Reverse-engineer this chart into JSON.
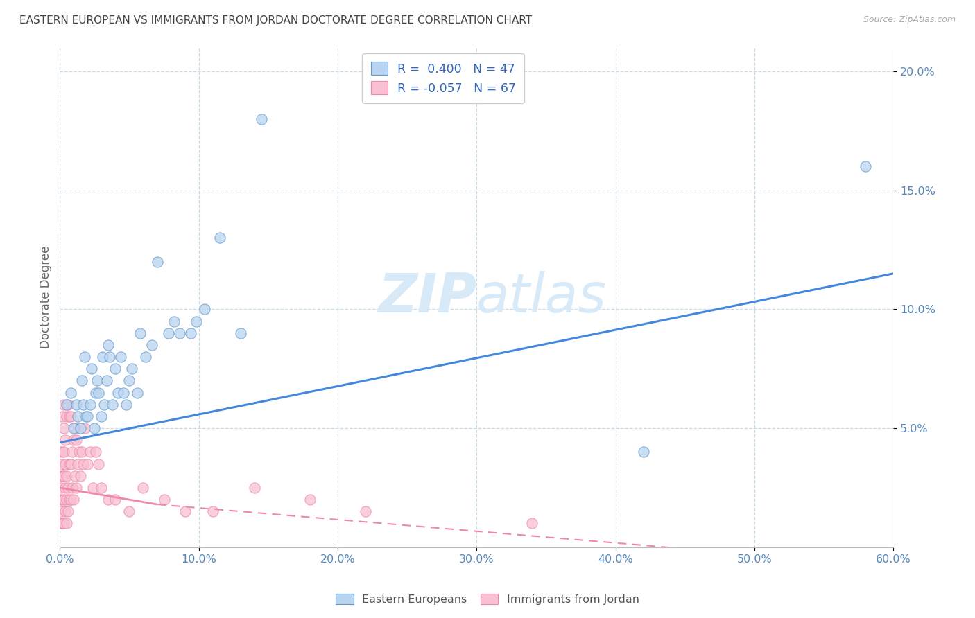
{
  "title": "EASTERN EUROPEAN VS IMMIGRANTS FROM JORDAN DOCTORATE DEGREE CORRELATION CHART",
  "source": "Source: ZipAtlas.com",
  "ylabel": "Doctorate Degree",
  "xlim": [
    0.0,
    0.6
  ],
  "ylim": [
    0.0,
    0.21
  ],
  "xtick_vals": [
    0.0,
    0.1,
    0.2,
    0.3,
    0.4,
    0.5,
    0.6
  ],
  "ytick_vals": [
    0.05,
    0.1,
    0.15,
    0.2
  ],
  "R_eastern": 0.4,
  "N_eastern": 47,
  "R_jordan": -0.057,
  "N_jordan": 67,
  "eastern_color": "#b8d4f0",
  "jordan_color": "#f8c0d0",
  "eastern_edge_color": "#6699cc",
  "jordan_edge_color": "#ee88aa",
  "trendline_eastern_color": "#4488dd",
  "trendline_jordan_color": "#ee88aa",
  "background_color": "#ffffff",
  "grid_color": "#c8dce8",
  "title_color": "#444444",
  "axis_tick_color": "#5588bb",
  "watermark_color": "#d8eaf8",
  "eastern_x": [
    0.005,
    0.008,
    0.01,
    0.012,
    0.013,
    0.015,
    0.016,
    0.017,
    0.018,
    0.019,
    0.02,
    0.022,
    0.023,
    0.025,
    0.026,
    0.027,
    0.028,
    0.03,
    0.031,
    0.032,
    0.034,
    0.035,
    0.036,
    0.038,
    0.04,
    0.042,
    0.044,
    0.046,
    0.048,
    0.05,
    0.052,
    0.056,
    0.058,
    0.062,
    0.066,
    0.07,
    0.078,
    0.082,
    0.086,
    0.094,
    0.098,
    0.104,
    0.115,
    0.13,
    0.145,
    0.42,
    0.58
  ],
  "eastern_y": [
    0.06,
    0.065,
    0.05,
    0.06,
    0.055,
    0.05,
    0.07,
    0.06,
    0.08,
    0.055,
    0.055,
    0.06,
    0.075,
    0.05,
    0.065,
    0.07,
    0.065,
    0.055,
    0.08,
    0.06,
    0.07,
    0.085,
    0.08,
    0.06,
    0.075,
    0.065,
    0.08,
    0.065,
    0.06,
    0.07,
    0.075,
    0.065,
    0.09,
    0.08,
    0.085,
    0.12,
    0.09,
    0.095,
    0.09,
    0.09,
    0.095,
    0.1,
    0.13,
    0.09,
    0.18,
    0.04,
    0.16
  ],
  "jordan_x": [
    0.0,
    0.0,
    0.0,
    0.0,
    0.001,
    0.001,
    0.001,
    0.001,
    0.002,
    0.002,
    0.002,
    0.002,
    0.002,
    0.003,
    0.003,
    0.003,
    0.003,
    0.003,
    0.003,
    0.004,
    0.004,
    0.004,
    0.004,
    0.005,
    0.005,
    0.005,
    0.005,
    0.006,
    0.006,
    0.006,
    0.007,
    0.007,
    0.007,
    0.008,
    0.008,
    0.008,
    0.009,
    0.009,
    0.01,
    0.01,
    0.011,
    0.011,
    0.012,
    0.012,
    0.013,
    0.014,
    0.015,
    0.016,
    0.017,
    0.018,
    0.02,
    0.022,
    0.024,
    0.026,
    0.028,
    0.03,
    0.035,
    0.04,
    0.05,
    0.06,
    0.075,
    0.09,
    0.11,
    0.14,
    0.18,
    0.22,
    0.34
  ],
  "jordan_y": [
    0.01,
    0.02,
    0.03,
    0.04,
    0.01,
    0.015,
    0.025,
    0.035,
    0.01,
    0.02,
    0.03,
    0.04,
    0.055,
    0.01,
    0.02,
    0.03,
    0.04,
    0.05,
    0.06,
    0.015,
    0.025,
    0.035,
    0.045,
    0.01,
    0.02,
    0.03,
    0.055,
    0.015,
    0.025,
    0.06,
    0.02,
    0.035,
    0.055,
    0.02,
    0.035,
    0.055,
    0.025,
    0.04,
    0.02,
    0.045,
    0.03,
    0.05,
    0.025,
    0.045,
    0.035,
    0.04,
    0.03,
    0.04,
    0.035,
    0.05,
    0.035,
    0.04,
    0.025,
    0.04,
    0.035,
    0.025,
    0.02,
    0.02,
    0.015,
    0.025,
    0.02,
    0.015,
    0.015,
    0.025,
    0.02,
    0.015,
    0.01
  ]
}
